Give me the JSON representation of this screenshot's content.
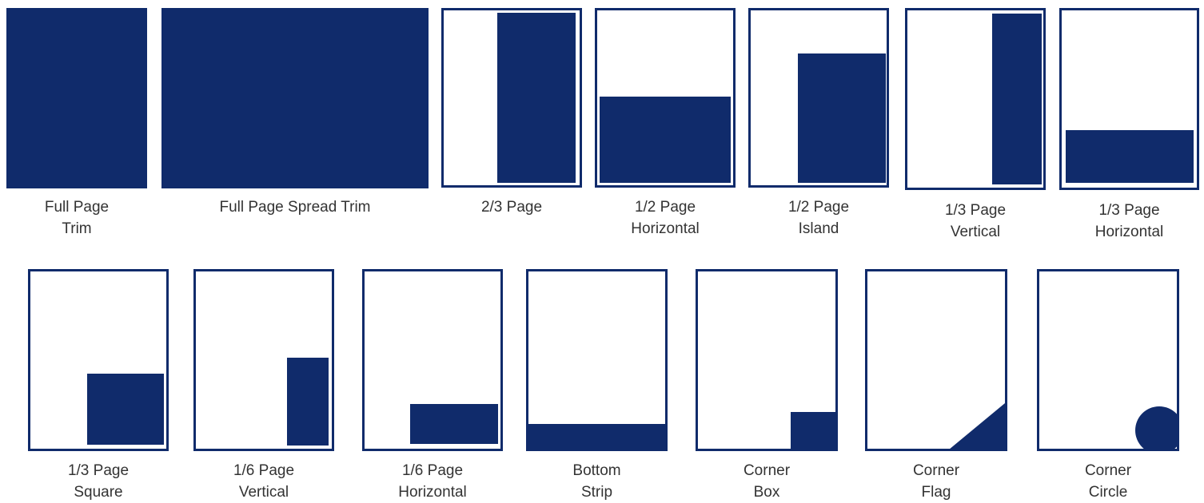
{
  "color": "#102b6b",
  "ads": [
    {
      "line1": "Full Page",
      "line2": "Trim"
    },
    {
      "line1": "Full Page Spread Trim",
      "line2": ""
    },
    {
      "line1": "2/3 Page",
      "line2": ""
    },
    {
      "line1": "1/2 Page",
      "line2": "Horizontal"
    },
    {
      "line1": "1/2 Page",
      "line2": "Island"
    },
    {
      "line1": "1/3 Page",
      "line2": "Vertical"
    },
    {
      "line1": "1/3 Page",
      "line2": "Horizontal"
    },
    {
      "line1": "1/3 Page",
      "line2": "Square"
    },
    {
      "line1": "1/6 Page",
      "line2": "Vertical"
    },
    {
      "line1": "1/6 Page",
      "line2": "Horizontal"
    },
    {
      "line1": "Bottom",
      "line2": "Strip"
    },
    {
      "line1": "Corner",
      "line2": "Box"
    },
    {
      "line1": "Corner",
      "line2": "Flag"
    },
    {
      "line1": "Corner",
      "line2": "Circle"
    }
  ]
}
